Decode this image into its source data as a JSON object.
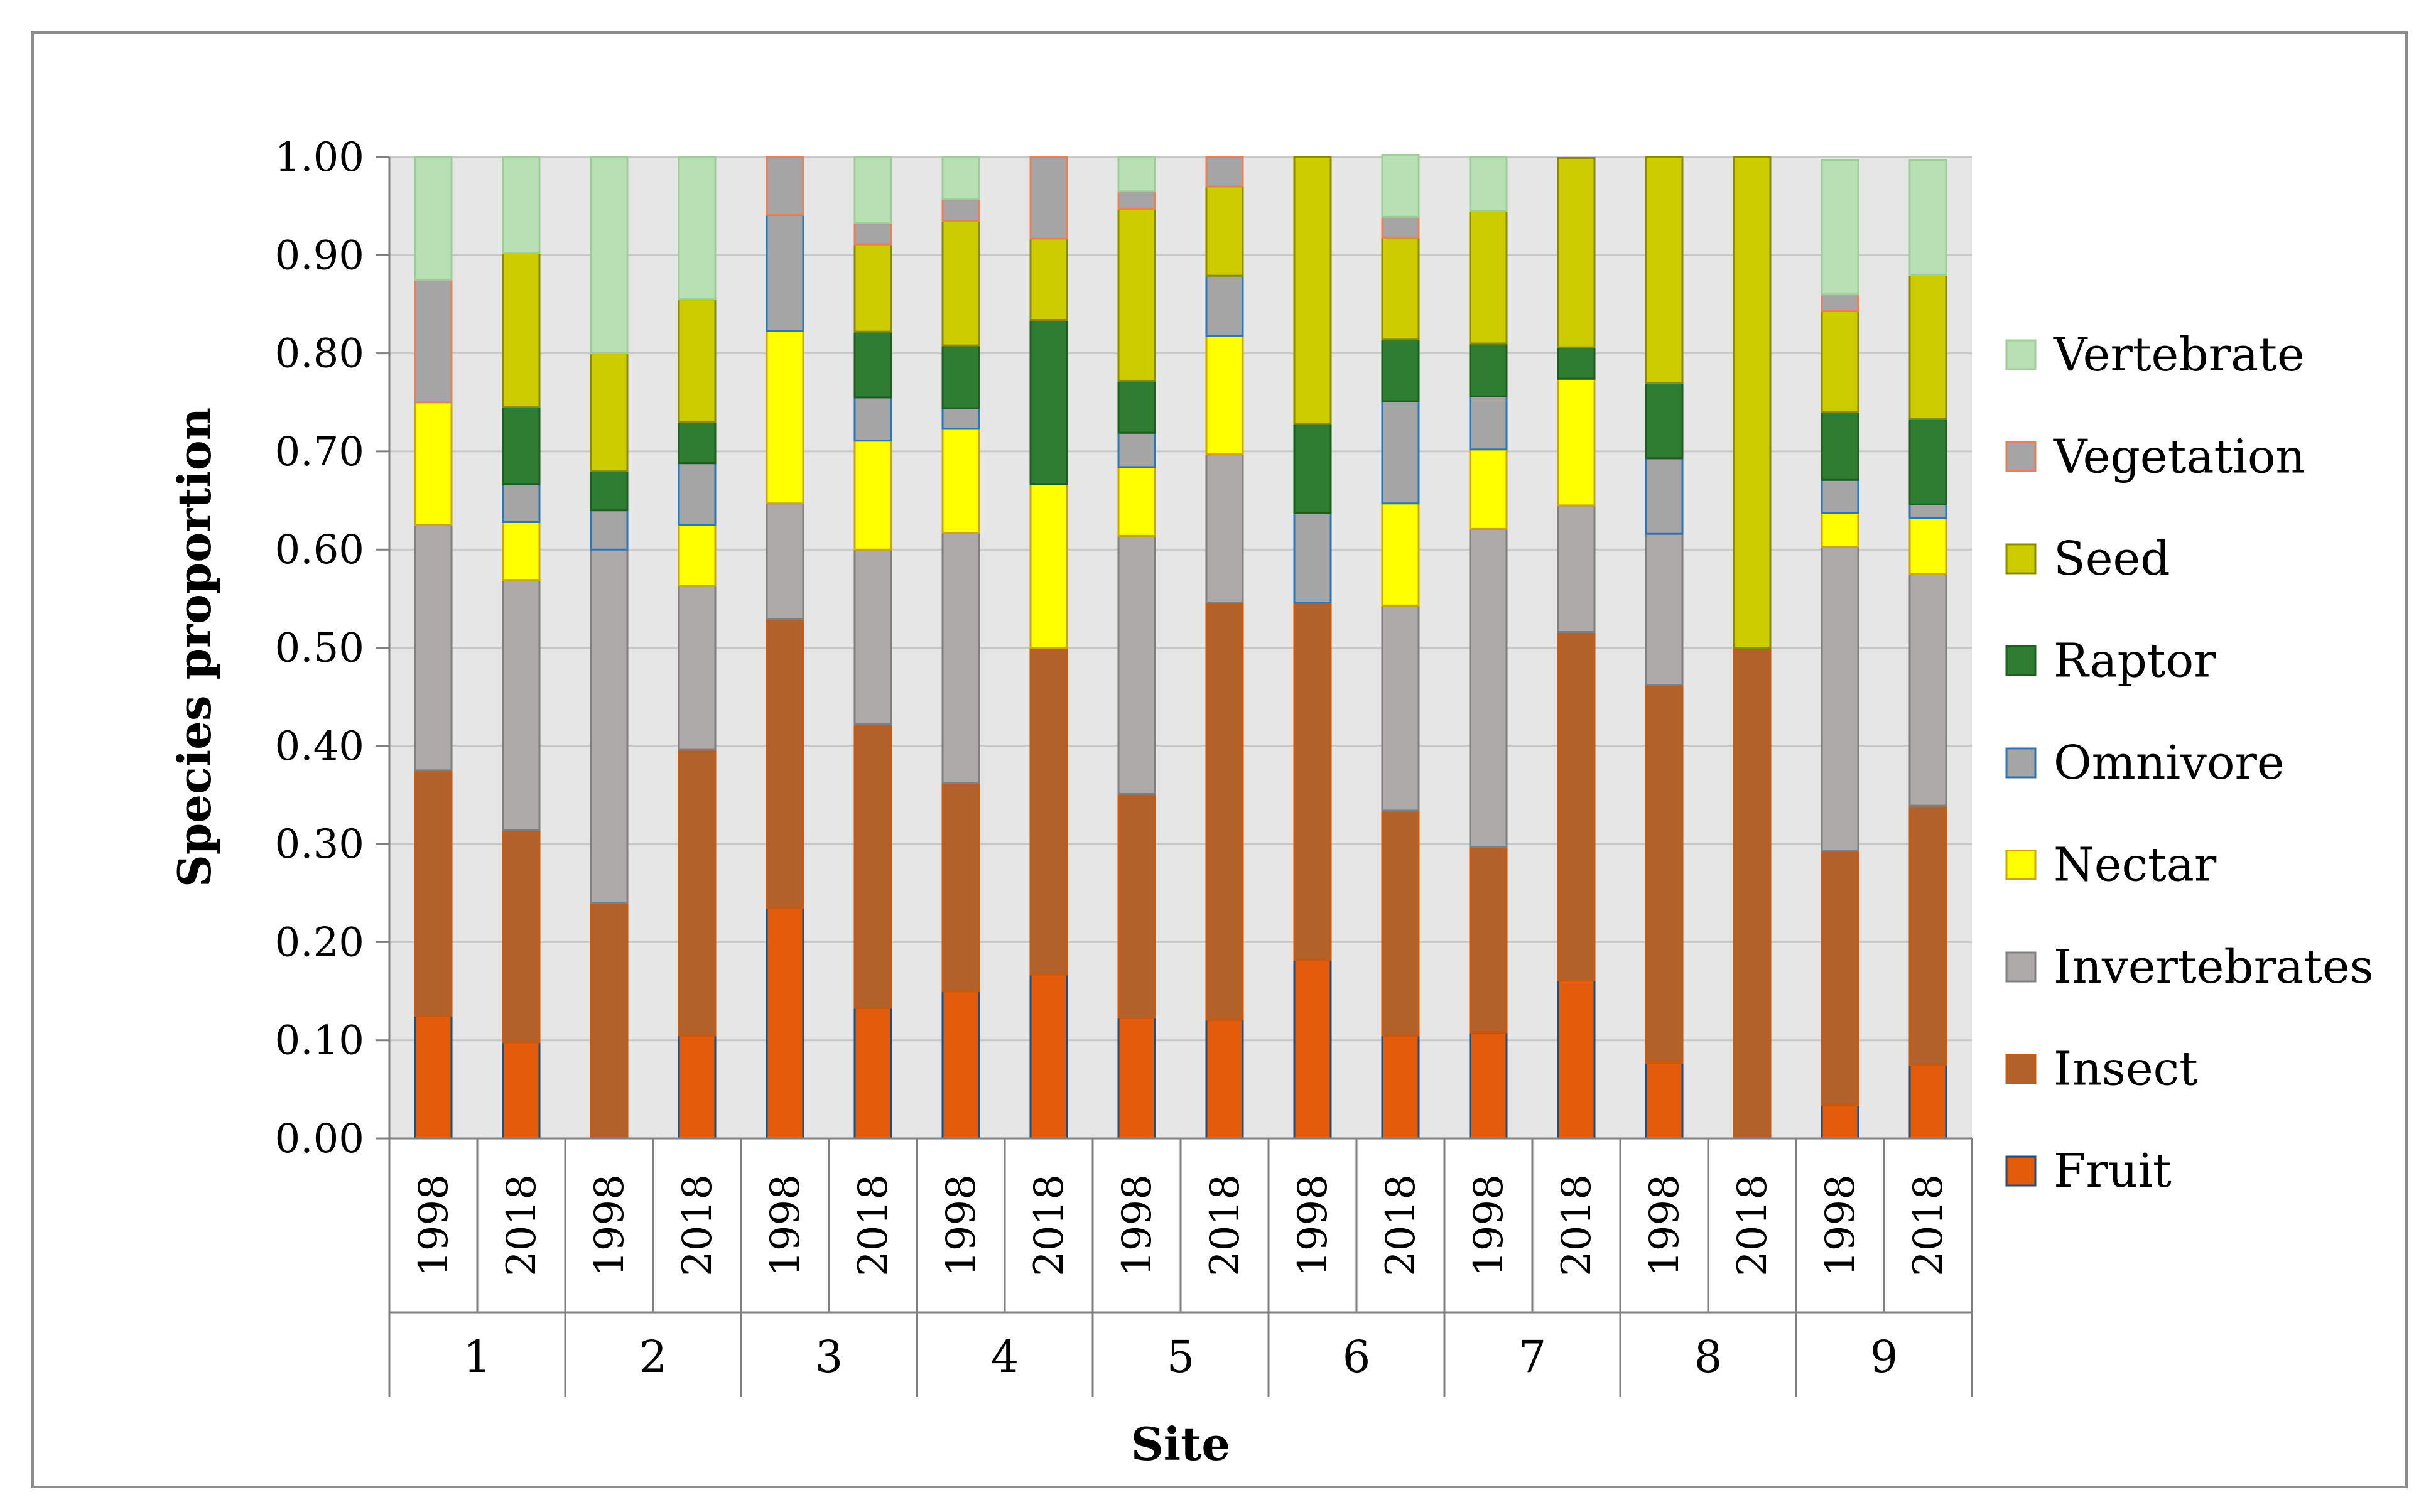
{
  "chart_data": {
    "type": "bar",
    "stacked": true,
    "title": "",
    "xlabel": "Site",
    "ylabel": "Species proportion",
    "ylim": [
      0,
      1
    ],
    "yticks": [
      "0.00",
      "0.10",
      "0.20",
      "0.30",
      "0.40",
      "0.50",
      "0.60",
      "0.70",
      "0.80",
      "0.90",
      "1.00"
    ],
    "gridlines": true,
    "legend_position": "right",
    "sites": [
      "1",
      "2",
      "3",
      "4",
      "5",
      "6",
      "7",
      "8",
      "9"
    ],
    "years": [
      "1998",
      "2018"
    ],
    "categories": [
      "1998",
      "2018",
      "1998",
      "2018",
      "1998",
      "2018",
      "1998",
      "2018",
      "1998",
      "2018",
      "1998",
      "2018",
      "1998",
      "2018",
      "1998",
      "2018",
      "1998",
      "2018"
    ],
    "series": [
      {
        "name": "Fruit",
        "color": "#E35B0B",
        "edge": "#1F4E79",
        "values": [
          0.125,
          0.098,
          0.0,
          0.105,
          0.235,
          0.133,
          0.15,
          0.167,
          0.123,
          0.121,
          0.182,
          0.105,
          0.108,
          0.161,
          0.077,
          0.0,
          0.034,
          0.075
        ]
      },
      {
        "name": "Insect",
        "color": "#B2612A",
        "edge": "#C55A11",
        "values": [
          0.25,
          0.216,
          0.24,
          0.291,
          0.294,
          0.289,
          0.212,
          0.333,
          0.228,
          0.425,
          0.364,
          0.229,
          0.189,
          0.355,
          0.385,
          0.5,
          0.259,
          0.264
        ]
      },
      {
        "name": "Invertebrates",
        "color": "#AEAAAA",
        "edge": "#7F7F7F",
        "values": [
          0.25,
          0.255,
          0.36,
          0.167,
          0.118,
          0.178,
          0.255,
          0.0,
          0.263,
          0.151,
          0.0,
          0.209,
          0.324,
          0.129,
          0.154,
          0.0,
          0.31,
          0.236
        ]
      },
      {
        "name": "Nectar",
        "color": "#FFFF00",
        "edge": "#C9A800",
        "values": [
          0.125,
          0.059,
          0.0,
          0.062,
          0.176,
          0.111,
          0.106,
          0.167,
          0.07,
          0.121,
          0.0,
          0.104,
          0.081,
          0.129,
          0.0,
          0.0,
          0.034,
          0.057
        ]
      },
      {
        "name": "Omnivore",
        "color": "#A5A5A5",
        "edge": "#2E75B6",
        "values": [
          0.0,
          0.039,
          0.04,
          0.063,
          0.118,
          0.044,
          0.021,
          0.0,
          0.035,
          0.061,
          0.091,
          0.104,
          0.054,
          0.0,
          0.077,
          0.0,
          0.034,
          0.014
        ]
      },
      {
        "name": "Raptor",
        "color": "#2E7D32",
        "edge": "#1B5E20",
        "values": [
          0.0,
          0.078,
          0.04,
          0.042,
          0.0,
          0.067,
          0.064,
          0.167,
          0.053,
          0.0,
          0.091,
          0.063,
          0.054,
          0.032,
          0.077,
          0.0,
          0.069,
          0.087
        ]
      },
      {
        "name": "Seed",
        "color": "#CCCC00",
        "edge": "#8B8B00",
        "values": [
          0.0,
          0.157,
          0.12,
          0.125,
          0.0,
          0.089,
          0.127,
          0.083,
          0.175,
          0.091,
          0.272,
          0.104,
          0.135,
          0.193,
          0.23,
          0.5,
          0.103,
          0.147
        ]
      },
      {
        "name": "Vegetation",
        "color": "#A5A5A5",
        "edge": "#E8805A",
        "values": [
          0.125,
          0.0,
          0.0,
          0.0,
          0.059,
          0.022,
          0.022,
          0.083,
          0.018,
          0.03,
          0.0,
          0.021,
          0.0,
          0.0,
          0.0,
          0.0,
          0.017,
          0.0
        ]
      },
      {
        "name": "Vertebrate",
        "color": "#B9E0B4",
        "edge": "#A0CC9A",
        "values": [
          0.125,
          0.098,
          0.2,
          0.145,
          0.0,
          0.067,
          0.043,
          0.0,
          0.035,
          0.0,
          0.0,
          0.063,
          0.055,
          0.0,
          0.0,
          0.0,
          0.137,
          0.117
        ]
      }
    ]
  }
}
